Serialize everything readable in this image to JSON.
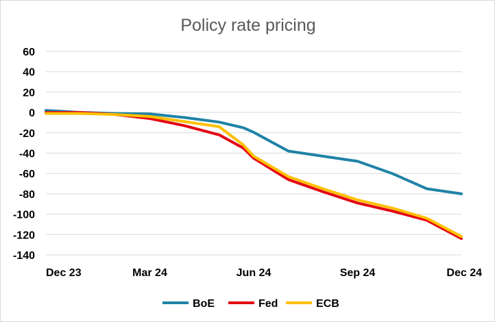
{
  "chart_data": {
    "type": "line",
    "title": "Policy rate pricing",
    "xlabel": "",
    "ylabel": "",
    "x_tick_labels": [
      "Dec 23",
      "Mar 24",
      "Jun 24",
      "Sep 24",
      "Dec 24"
    ],
    "x_ticks": [
      0,
      3,
      6,
      9,
      12
    ],
    "x": [
      0,
      1,
      2,
      3,
      4,
      5,
      5.7,
      6,
      7,
      8,
      9,
      10,
      11,
      12
    ],
    "xlim": [
      0,
      12
    ],
    "ylim": [
      -140,
      60
    ],
    "y_ticks": [
      60,
      40,
      20,
      0,
      -20,
      -40,
      -60,
      -80,
      -100,
      -120,
      -140
    ],
    "grid": true,
    "legend": "bottom",
    "series": [
      {
        "name": "BoE",
        "color": "#1f83a6",
        "x": [
          0,
          1,
          2,
          3,
          4,
          5,
          5.7,
          6,
          7,
          8,
          9,
          10,
          11,
          12
        ],
        "values": [
          2,
          0,
          -1,
          -1.5,
          -5,
          -9.5,
          -15,
          -19.5,
          -38,
          -43,
          -48,
          -60,
          -75,
          -80
        ]
      },
      {
        "name": "Fed",
        "color": "#e30613",
        "x": [
          0,
          1,
          2,
          3,
          4,
          5,
          5.7,
          6,
          7,
          8,
          9,
          10,
          11,
          12
        ],
        "values": [
          0,
          0,
          -2,
          -6,
          -13,
          -22,
          -35,
          -45,
          -66,
          -78,
          -89,
          -97,
          -106,
          -124
        ]
      },
      {
        "name": "ECB",
        "color": "#ffc000",
        "x": [
          0,
          1,
          2,
          3,
          4,
          5,
          5.7,
          6,
          7,
          8,
          9,
          10,
          11,
          12
        ],
        "values": [
          -1,
          -1,
          -2,
          -4,
          -9,
          -14,
          -32,
          -43,
          -63,
          -75,
          -86,
          -94,
          -104,
          -122
        ]
      }
    ]
  }
}
